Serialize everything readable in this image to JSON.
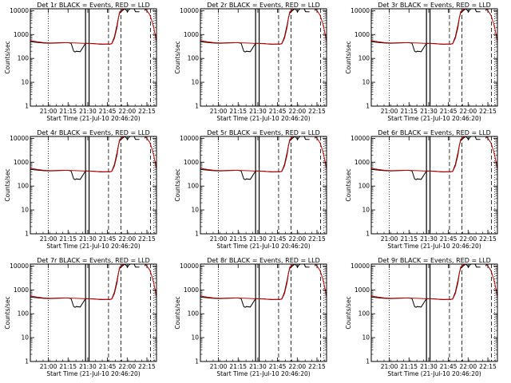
{
  "chart_data": {
    "type": "line",
    "layout": "3x3 grid of panels",
    "x_tick_labels": [
      "21:00",
      "21:15",
      "21:30",
      "21:45",
      "22:00",
      "22:15"
    ],
    "y_tick_labels": [
      "1",
      "10",
      "100",
      "1000",
      "10000"
    ],
    "y_scale": "log",
    "ylim": [
      1,
      12000
    ],
    "xlim_minutes_after_start": [
      0,
      96
    ],
    "xlabel": "Start Time (21-Jul-10 20:46:20)",
    "ylabel": "Counts/sec",
    "series_colors": {
      "events": "#000000",
      "lld": "#cc0000"
    },
    "events_series": {
      "name": "Events",
      "x_minutes": [
        0,
        5,
        10,
        15,
        20,
        25,
        28,
        29,
        30,
        31,
        33,
        34,
        35,
        38,
        42,
        48,
        52,
        55,
        58,
        59,
        60,
        61,
        62,
        64,
        66,
        67,
        68,
        70,
        72,
        74,
        75,
        76,
        77,
        78,
        79,
        80,
        83,
        85,
        86,
        87,
        88,
        89,
        90,
        92,
        93,
        94,
        95,
        96
      ],
      "y_counts": [
        500,
        470,
        440,
        430,
        440,
        450,
        460,
        455,
        440,
        430,
        200,
        185,
        200,
        190,
        430,
        420,
        400,
        390,
        400,
        395,
        390,
        400,
        420,
        800,
        2500,
        5000,
        8000,
        10000,
        12000,
        9000,
        11000,
        12000,
        null,
        null,
        12000,
        9000,
        9000,
        null,
        null,
        10000,
        12000,
        null,
        null,
        null,
        null,
        null,
        null,
        null
      ]
    },
    "lld_series": {
      "name": "LLD",
      "x_minutes": [
        0,
        5,
        10,
        15,
        20,
        25,
        30,
        35,
        40,
        45,
        50,
        55,
        58,
        60,
        62,
        64,
        66,
        67,
        68,
        70,
        72,
        75,
        78,
        80,
        83,
        85,
        86,
        87,
        88,
        89,
        90,
        91,
        92,
        93,
        94,
        95,
        96
      ],
      "y_counts": [
        550,
        500,
        460,
        440,
        450,
        460,
        450,
        440,
        430,
        420,
        410,
        400,
        400,
        400,
        410,
        700,
        2000,
        5000,
        9000,
        11000,
        12000,
        12000,
        12000,
        12000,
        12000,
        12000,
        12000,
        12000,
        11000,
        9500,
        8000,
        6500,
        4500,
        3000,
        1800,
        1000,
        500
      ]
    },
    "vertical_markers": [
      {
        "x_minutes": 13.7,
        "style": "dotted"
      },
      {
        "x_minutes": 42.0,
        "style": "solid"
      },
      {
        "x_minutes": 44.7,
        "style": "solid"
      },
      {
        "x_minutes": 59.5,
        "style": "dashed"
      },
      {
        "x_minutes": 69.0,
        "style": "dashed"
      },
      {
        "x_minutes": 91.5,
        "style": "dashed"
      },
      {
        "x_minutes": 94.0,
        "style": "dotted"
      }
    ],
    "panels": [
      {
        "title": "Det 1r BLACK = Events, RED = LLD"
      },
      {
        "title": "Det 2r BLACK = Events, RED = LLD"
      },
      {
        "title": "Det 3r BLACK = Events, RED = LLD"
      },
      {
        "title": "Det 4r BLACK = Events, RED = LLD"
      },
      {
        "title": "Det 5r BLACK = Events, RED = LLD"
      },
      {
        "title": "Det 6r BLACK = Events, RED = LLD"
      },
      {
        "title": "Det 7r BLACK = Events, RED = LLD"
      },
      {
        "title": "Det 8r BLACK = Events, RED = LLD"
      },
      {
        "title": "Det 9r BLACK = Events, RED = LLD"
      }
    ]
  }
}
